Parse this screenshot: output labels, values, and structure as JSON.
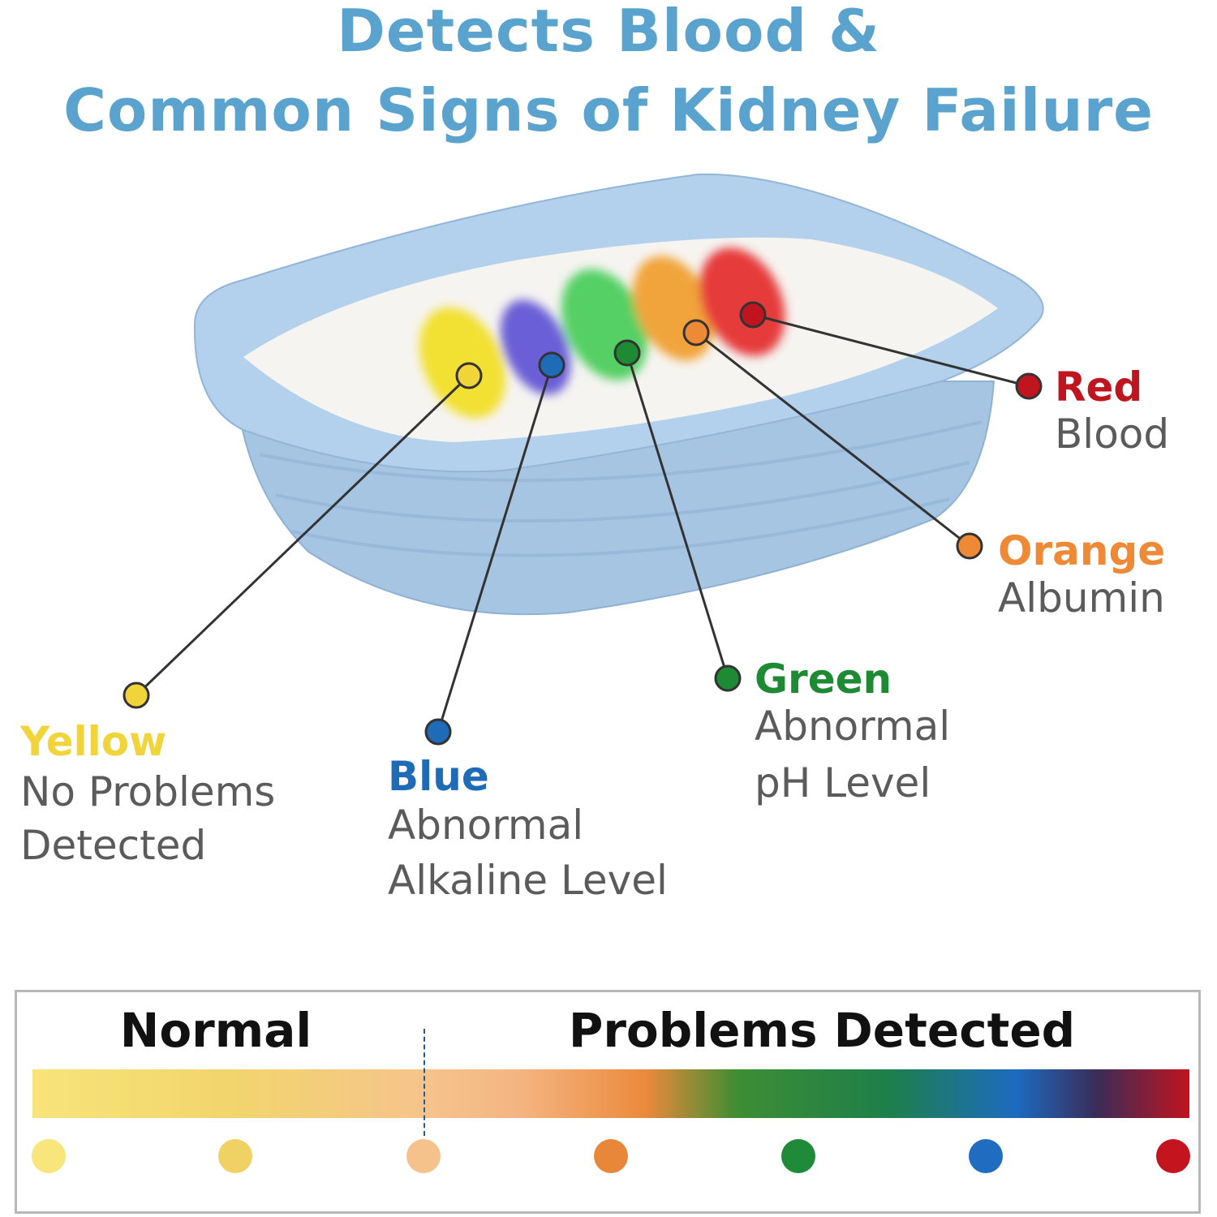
{
  "title": {
    "line1": "Detects Blood &",
    "line2": "Common Signs of Kidney Failure"
  },
  "colors": {
    "title": "#5aa3cf",
    "litter_box": "#a9c8e6"
  },
  "indicators": [
    {
      "color_name": "Yellow",
      "meaning_line1": "No Problems",
      "meaning_line2": "Detected",
      "color": "#f1d43a"
    },
    {
      "color_name": "Blue",
      "meaning_line1": "Abnormal",
      "meaning_line2": "Alkaline Level",
      "color": "#1e6bb8"
    },
    {
      "color_name": "Green",
      "meaning_line1": "Abnormal",
      "meaning_line2": "pH Level",
      "color": "#1e8a34"
    },
    {
      "color_name": "Orange",
      "meaning_line1": "Albumin",
      "meaning_line2": "",
      "color": "#ee8a35"
    },
    {
      "color_name": "Red",
      "meaning_line1": "Blood",
      "meaning_line2": "",
      "color": "#c0141e"
    }
  ],
  "scale": {
    "normal_label": "Normal",
    "problems_label": "Problems Detected",
    "swatches": [
      "#f8e57c",
      "#f0d264",
      "#f5c28c",
      "#e8873a",
      "#1f8a3a",
      "#1f6cc0",
      "#c4141e"
    ]
  }
}
